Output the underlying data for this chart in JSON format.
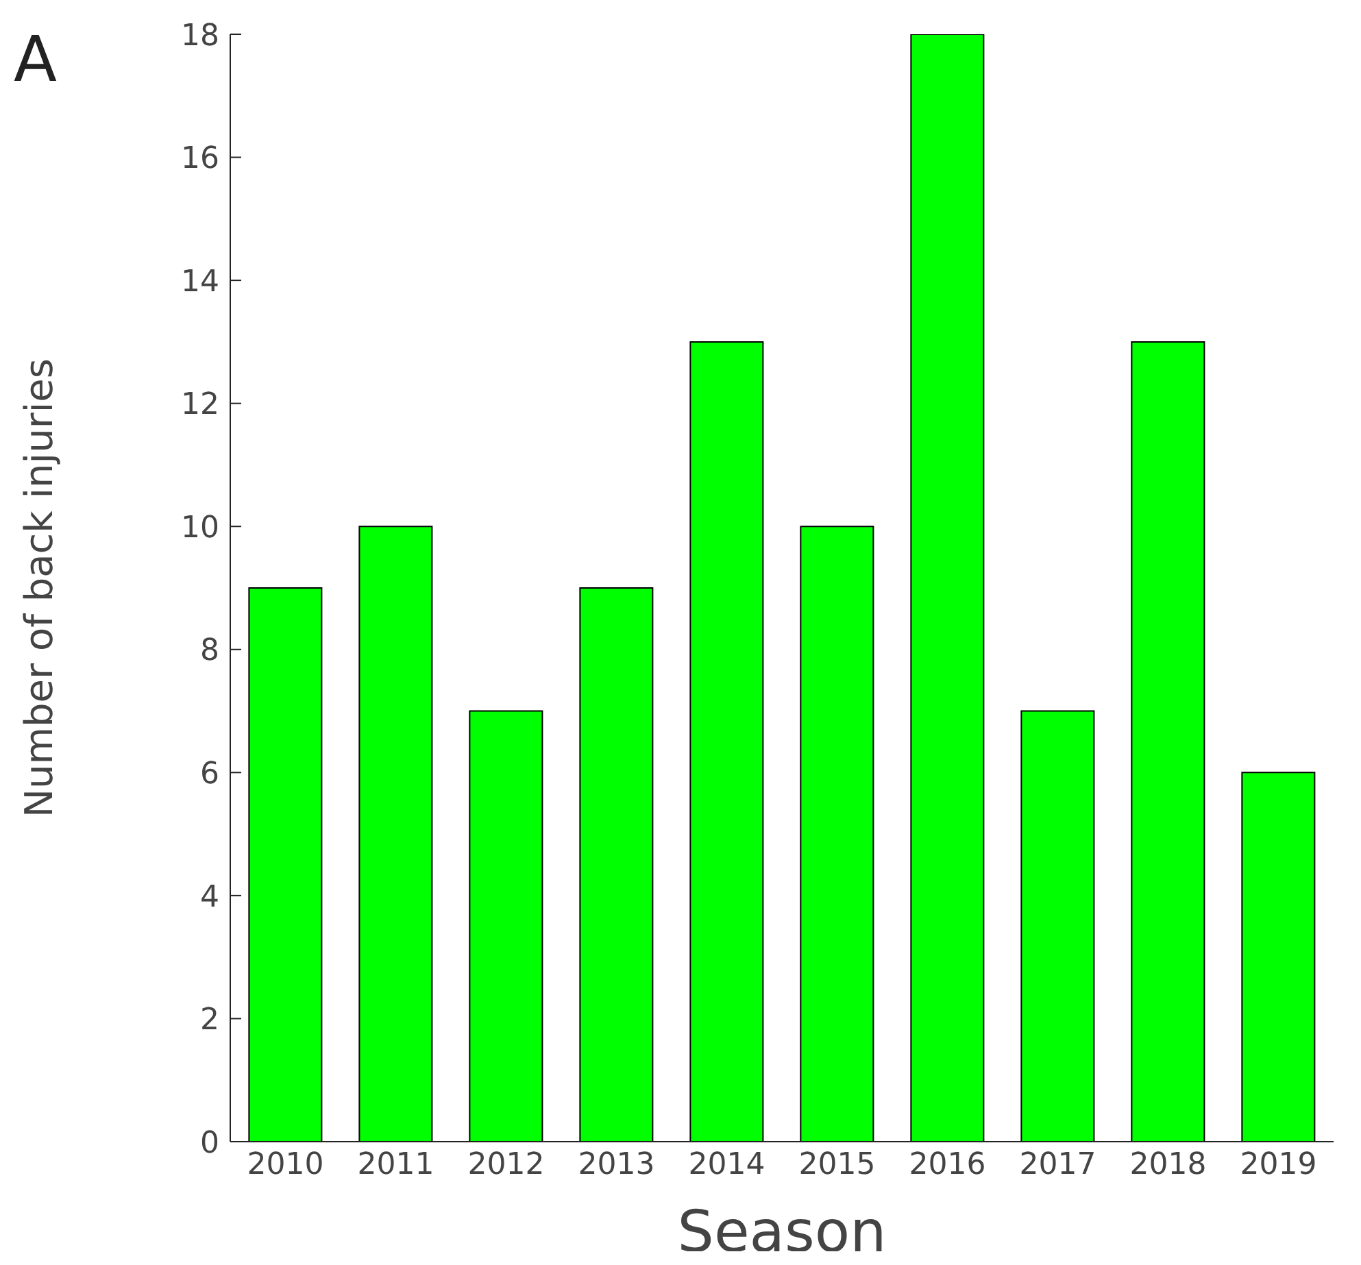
{
  "chart_data": {
    "type": "bar",
    "title": "A",
    "xlabel": "Season",
    "ylabel": "Number of back injuries",
    "categories": [
      "2010",
      "2011",
      "2012",
      "2013",
      "2014",
      "2015",
      "2016",
      "2017",
      "2018",
      "2019"
    ],
    "values": [
      9,
      10,
      7,
      9,
      13,
      10,
      18,
      7,
      13,
      6
    ],
    "color": "#00ff00",
    "ylim": [
      0,
      18
    ],
    "yticks": [
      0,
      2,
      4,
      6,
      8,
      10,
      12,
      14,
      16,
      18
    ]
  }
}
